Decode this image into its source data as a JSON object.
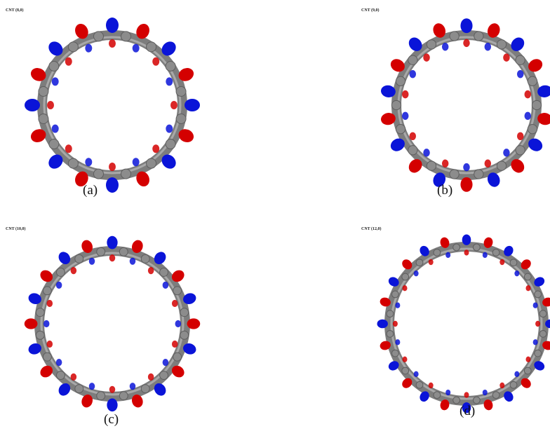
{
  "panels": [
    {
      "title": "CNT (8,0)",
      "caption": "(a)"
    },
    {
      "title": "CNT (9,0)",
      "caption": "(b)"
    },
    {
      "title": "CNT (10,0)",
      "caption": "(c)"
    },
    {
      "title": "CNT (12,0)",
      "caption": "(d)"
    }
  ]
}
